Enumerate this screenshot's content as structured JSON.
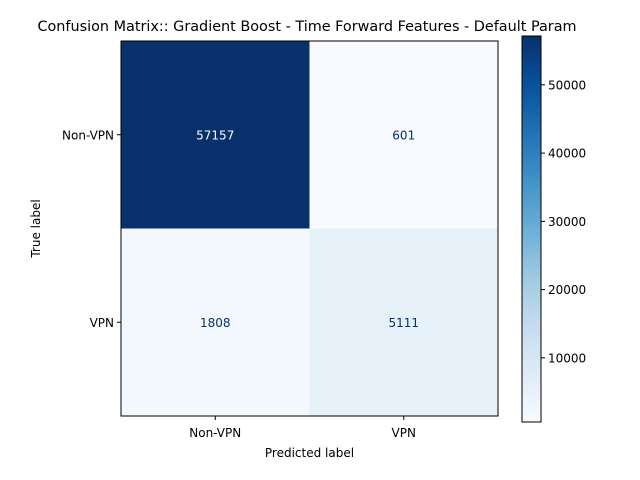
{
  "chart_data": {
    "type": "heatmap",
    "title": "Confusion Matrix:: Gradient Boost - Time Forward Features - Default Param",
    "xlabel": "Predicted label",
    "ylabel": "True label",
    "x_categories": [
      "Non-VPN",
      "VPN"
    ],
    "y_categories": [
      "Non-VPN",
      "VPN"
    ],
    "values": [
      [
        57157,
        601
      ],
      [
        1808,
        5111
      ]
    ],
    "value_labels": [
      [
        "57157",
        "601"
      ],
      [
        "1808",
        "5111"
      ]
    ],
    "colormap": "Blues",
    "colorbar": {
      "range": [
        601,
        57157
      ],
      "ticks": [
        10000,
        20000,
        30000,
        40000,
        50000
      ],
      "tick_labels": [
        "10000",
        "20000",
        "30000",
        "40000",
        "50000"
      ]
    },
    "grid": false
  }
}
